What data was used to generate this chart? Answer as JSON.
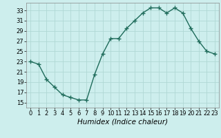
{
  "x": [
    0,
    1,
    2,
    3,
    4,
    5,
    6,
    7,
    8,
    9,
    10,
    11,
    12,
    13,
    14,
    15,
    16,
    17,
    18,
    19,
    20,
    21,
    22,
    23
  ],
  "y": [
    23,
    22.5,
    19.5,
    18,
    16.5,
    16,
    15.5,
    15.5,
    20.5,
    24.5,
    27.5,
    27.5,
    29.5,
    31,
    32.5,
    33.5,
    33.5,
    32.5,
    33.5,
    32.5,
    29.5,
    27,
    25,
    24.5
  ],
  "line_color": "#1e6b5a",
  "marker": "+",
  "marker_size": 4,
  "marker_lw": 1.0,
  "bg_color": "#cdeeed",
  "grid_color": "#b0d8d4",
  "xlabel": "Humidex (Indice chaleur)",
  "xlabel_style": "italic",
  "xlabel_fontsize": 7.5,
  "xlim": [
    -0.5,
    23.5
  ],
  "ylim": [
    14,
    34.5
  ],
  "yticks": [
    15,
    17,
    19,
    21,
    23,
    25,
    27,
    29,
    31,
    33
  ],
  "xticks": [
    0,
    1,
    2,
    3,
    4,
    5,
    6,
    7,
    8,
    9,
    10,
    11,
    12,
    13,
    14,
    15,
    16,
    17,
    18,
    19,
    20,
    21,
    22,
    23
  ],
  "tick_labelsize": 6,
  "linewidth": 1.0
}
